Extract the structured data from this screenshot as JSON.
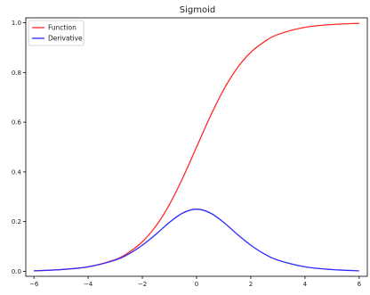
{
  "chart_data": {
    "type": "line",
    "title": "Sigmoid",
    "xlabel": "",
    "ylabel": "",
    "xlim": [
      -6.3,
      6.3
    ],
    "ylim": [
      -0.02,
      1.02
    ],
    "xticks": [
      -6,
      -4,
      -2,
      0,
      2,
      4,
      6
    ],
    "xtick_labels": [
      "−6",
      "−4",
      "−2",
      "0",
      "2",
      "4",
      "6"
    ],
    "yticks": [
      0.0,
      0.2,
      0.4,
      0.6,
      0.8,
      1.0
    ],
    "ytick_labels": [
      "0.0",
      "0.2",
      "0.4",
      "0.6",
      "0.8",
      "1.0"
    ],
    "grid": false,
    "legend_position": "top-left",
    "x": [
      -6,
      -5,
      -4,
      -3,
      -2.5,
      -2,
      -1.5,
      -1,
      -0.5,
      0,
      0.5,
      1,
      1.5,
      2,
      2.5,
      3,
      4,
      5,
      6
    ],
    "series": [
      {
        "name": "Function",
        "color": "#ff2a2a",
        "values": [
          0.002,
          0.007,
          0.018,
          0.047,
          0.076,
          0.119,
          0.182,
          0.269,
          0.378,
          0.5,
          0.622,
          0.731,
          0.818,
          0.881,
          0.924,
          0.953,
          0.982,
          0.993,
          0.998
        ]
      },
      {
        "name": "Derivative",
        "color": "#2a2aff",
        "values": [
          0.002,
          0.007,
          0.018,
          0.045,
          0.07,
          0.105,
          0.149,
          0.197,
          0.235,
          0.25,
          0.235,
          0.197,
          0.149,
          0.105,
          0.07,
          0.045,
          0.018,
          0.007,
          0.002
        ]
      }
    ]
  }
}
